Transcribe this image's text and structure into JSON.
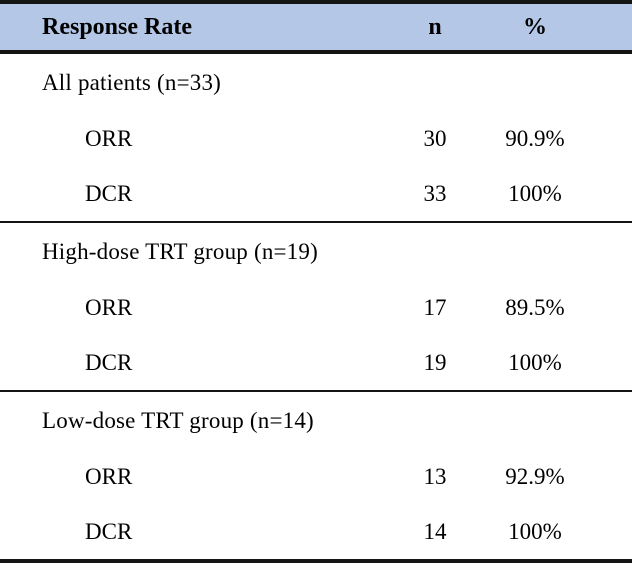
{
  "table": {
    "header": {
      "label": "Response Rate",
      "n": "n",
      "pct": "%"
    },
    "header_bg_color": "#b4c7e7",
    "rule_color": "#141414",
    "sections": [
      {
        "title": "All patients (n=33)",
        "rows": [
          {
            "label": "ORR",
            "n": "30",
            "pct": "90.9%"
          },
          {
            "label": "DCR",
            "n": "33",
            "pct": "100%"
          }
        ]
      },
      {
        "title": "High-dose TRT group (n=19)",
        "rows": [
          {
            "label": "ORR",
            "n": "17",
            "pct": "89.5%"
          },
          {
            "label": "DCR",
            "n": "19",
            "pct": "100%"
          }
        ]
      },
      {
        "title": "Low-dose TRT group (n=14)",
        "rows": [
          {
            "label": "ORR",
            "n": "13",
            "pct": "92.9%"
          },
          {
            "label": "DCR",
            "n": "14",
            "pct": "100%"
          }
        ]
      }
    ]
  },
  "chart_data": {
    "type": "table",
    "title": "Response Rate",
    "columns": [
      "Response Rate",
      "n",
      "%"
    ],
    "groups": [
      {
        "group": "All patients",
        "group_n": 33,
        "rows": [
          {
            "measure": "ORR",
            "n": 30,
            "percent": 90.9
          },
          {
            "measure": "DCR",
            "n": 33,
            "percent": 100
          }
        ]
      },
      {
        "group": "High-dose TRT group",
        "group_n": 19,
        "rows": [
          {
            "measure": "ORR",
            "n": 17,
            "percent": 89.5
          },
          {
            "measure": "DCR",
            "n": 19,
            "percent": 100
          }
        ]
      },
      {
        "group": "Low-dose TRT group",
        "group_n": 14,
        "rows": [
          {
            "measure": "ORR",
            "n": 13,
            "percent": 92.9
          },
          {
            "measure": "DCR",
            "n": 14,
            "percent": 100
          }
        ]
      }
    ]
  }
}
